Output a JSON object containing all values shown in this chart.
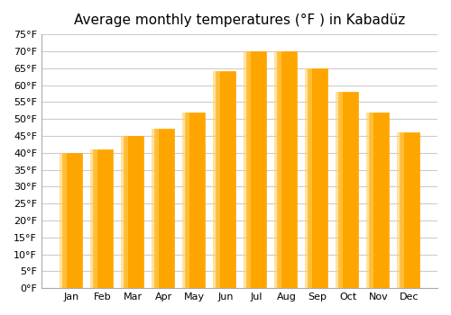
{
  "months": [
    "Jan",
    "Feb",
    "Mar",
    "Apr",
    "May",
    "Jun",
    "Jul",
    "Aug",
    "Sep",
    "Oct",
    "Nov",
    "Dec"
  ],
  "temperatures": [
    40,
    41,
    45,
    47,
    52,
    64,
    70,
    70,
    65,
    58,
    52,
    46
  ],
  "bar_color_top": "#FFA500",
  "bar_color_gradient_top": "#FFB733",
  "bar_color_gradient_bottom": "#FFA500",
  "title": "Average monthly temperatures (°F ) in Kabadüz",
  "ylim": [
    0,
    75
  ],
  "ytick_step": 5,
  "background_color": "#ffffff",
  "grid_color": "#cccccc",
  "title_fontsize": 11
}
